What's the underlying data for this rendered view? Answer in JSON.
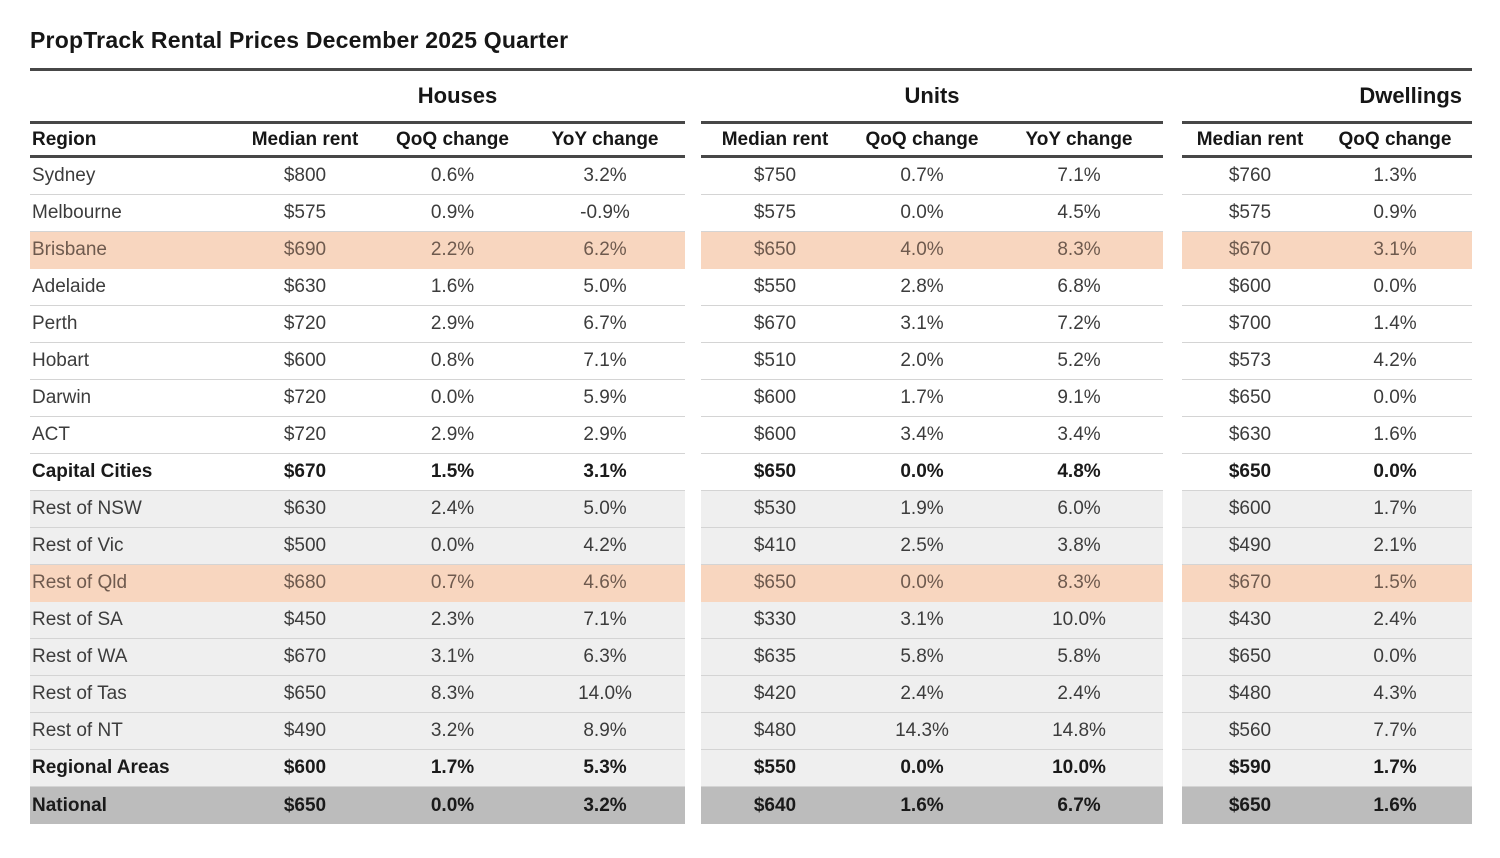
{
  "chart_data": {
    "type": "table",
    "title": "PropTrack Rental Prices December 2025 Quarter",
    "region_column_header": "Region",
    "groups": [
      {
        "label": "Houses",
        "key": "houses",
        "columns": [
          "Median rent",
          "QoQ change",
          "YoY change"
        ]
      },
      {
        "label": "Units",
        "key": "units",
        "columns": [
          "Median rent",
          "QoQ change",
          "YoY change"
        ]
      },
      {
        "label": "Dwellings",
        "key": "dwellings",
        "columns": [
          "Median rent",
          "QoQ change"
        ]
      }
    ],
    "rows": [
      {
        "region": "Sydney",
        "houses": [
          "$800",
          "0.6%",
          "3.2%"
        ],
        "units": [
          "$750",
          "0.7%",
          "7.1%"
        ],
        "dwellings": [
          "$760",
          "1.3%"
        ],
        "background": "white",
        "bold": false
      },
      {
        "region": "Melbourne",
        "houses": [
          "$575",
          "0.9%",
          "-0.9%"
        ],
        "units": [
          "$575",
          "0.0%",
          "4.5%"
        ],
        "dwellings": [
          "$575",
          "0.9%"
        ],
        "background": "white",
        "bold": false
      },
      {
        "region": "Brisbane",
        "houses": [
          "$690",
          "2.2%",
          "6.2%"
        ],
        "units": [
          "$650",
          "4.0%",
          "8.3%"
        ],
        "dwellings": [
          "$670",
          "3.1%"
        ],
        "background": "peach",
        "bold": false
      },
      {
        "region": "Adelaide",
        "houses": [
          "$630",
          "1.6%",
          "5.0%"
        ],
        "units": [
          "$550",
          "2.8%",
          "6.8%"
        ],
        "dwellings": [
          "$600",
          "0.0%"
        ],
        "background": "white",
        "bold": false
      },
      {
        "region": "Perth",
        "houses": [
          "$720",
          "2.9%",
          "6.7%"
        ],
        "units": [
          "$670",
          "3.1%",
          "7.2%"
        ],
        "dwellings": [
          "$700",
          "1.4%"
        ],
        "background": "white",
        "bold": false
      },
      {
        "region": "Hobart",
        "houses": [
          "$600",
          "0.8%",
          "7.1%"
        ],
        "units": [
          "$510",
          "2.0%",
          "5.2%"
        ],
        "dwellings": [
          "$573",
          "4.2%"
        ],
        "background": "white",
        "bold": false
      },
      {
        "region": "Darwin",
        "houses": [
          "$720",
          "0.0%",
          "5.9%"
        ],
        "units": [
          "$600",
          "1.7%",
          "9.1%"
        ],
        "dwellings": [
          "$650",
          "0.0%"
        ],
        "background": "white",
        "bold": false
      },
      {
        "region": "ACT",
        "houses": [
          "$720",
          "2.9%",
          "2.9%"
        ],
        "units": [
          "$600",
          "3.4%",
          "3.4%"
        ],
        "dwellings": [
          "$630",
          "1.6%"
        ],
        "background": "white",
        "bold": false
      },
      {
        "region": "Capital Cities",
        "houses": [
          "$670",
          "1.5%",
          "3.1%"
        ],
        "units": [
          "$650",
          "0.0%",
          "4.8%"
        ],
        "dwellings": [
          "$650",
          "0.0%"
        ],
        "background": "white",
        "bold": true
      },
      {
        "region": "Rest of NSW",
        "houses": [
          "$630",
          "2.4%",
          "5.0%"
        ],
        "units": [
          "$530",
          "1.9%",
          "6.0%"
        ],
        "dwellings": [
          "$600",
          "1.7%"
        ],
        "background": "gray",
        "bold": false
      },
      {
        "region": "Rest of Vic",
        "houses": [
          "$500",
          "0.0%",
          "4.2%"
        ],
        "units": [
          "$410",
          "2.5%",
          "3.8%"
        ],
        "dwellings": [
          "$490",
          "2.1%"
        ],
        "background": "gray",
        "bold": false
      },
      {
        "region": "Rest of Qld",
        "houses": [
          "$680",
          "0.7%",
          "4.6%"
        ],
        "units": [
          "$650",
          "0.0%",
          "8.3%"
        ],
        "dwellings": [
          "$670",
          "1.5%"
        ],
        "background": "peach",
        "bold": false
      },
      {
        "region": "Rest of SA",
        "houses": [
          "$450",
          "2.3%",
          "7.1%"
        ],
        "units": [
          "$330",
          "3.1%",
          "10.0%"
        ],
        "dwellings": [
          "$430",
          "2.4%"
        ],
        "background": "gray",
        "bold": false
      },
      {
        "region": "Rest of WA",
        "houses": [
          "$670",
          "3.1%",
          "6.3%"
        ],
        "units": [
          "$635",
          "5.8%",
          "5.8%"
        ],
        "dwellings": [
          "$650",
          "0.0%"
        ],
        "background": "gray",
        "bold": false
      },
      {
        "region": "Rest of Tas",
        "houses": [
          "$650",
          "8.3%",
          "14.0%"
        ],
        "units": [
          "$420",
          "2.4%",
          "2.4%"
        ],
        "dwellings": [
          "$480",
          "4.3%"
        ],
        "background": "gray",
        "bold": false
      },
      {
        "region": "Rest of NT",
        "houses": [
          "$490",
          "3.2%",
          "8.9%"
        ],
        "units": [
          "$480",
          "14.3%",
          "14.8%"
        ],
        "dwellings": [
          "$560",
          "7.7%"
        ],
        "background": "gray",
        "bold": false
      },
      {
        "region": "Regional Areas",
        "houses": [
          "$600",
          "1.7%",
          "5.3%"
        ],
        "units": [
          "$550",
          "0.0%",
          "10.0%"
        ],
        "dwellings": [
          "$590",
          "1.7%"
        ],
        "background": "gray",
        "bold": true
      },
      {
        "region": "National",
        "houses": [
          "$650",
          "0.0%",
          "3.2%"
        ],
        "units": [
          "$640",
          "1.6%",
          "6.7%"
        ],
        "dwellings": [
          "$650",
          "1.6%"
        ],
        "background": "darkgray",
        "bold": true
      }
    ]
  },
  "colors": {
    "row_highlight": "#f8d6bf",
    "row_highlight_text": "#6e5a4e",
    "row_regional": "#efefef",
    "row_national": "#bcbcbc",
    "rule": "#474747",
    "row_separator": "#d4d4d4",
    "text": "#3c3c3c",
    "heading_text": "#161616"
  }
}
